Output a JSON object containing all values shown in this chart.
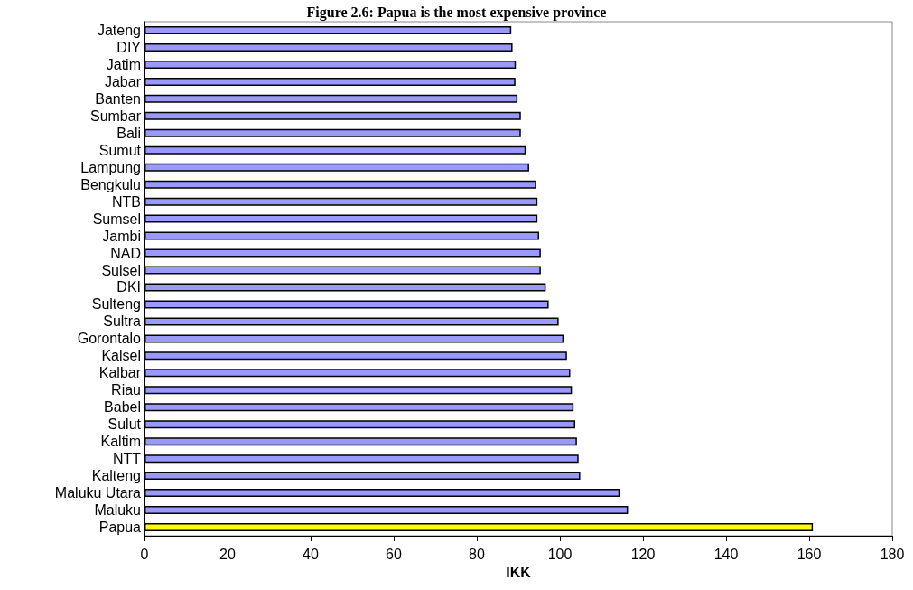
{
  "chart_data": {
    "type": "bar",
    "orientation": "horizontal",
    "title": "Figure 2.6: Papua is the most expensive province",
    "xlabel": "IKK",
    "categories": [
      "Jateng",
      "DIY",
      "Jatim",
      "Jabar",
      "Banten",
      "Sumbar",
      "Bali",
      "Sumut",
      "Lampung",
      "Bengkulu",
      "NTB",
      "Sumsel",
      "Jambi",
      "NAD",
      "Sulsel",
      "DKI",
      "Sulteng",
      "Sultra",
      "Gorontalo",
      "Kalsel",
      "Kalbar",
      "Riau",
      "Babel",
      "Sulut",
      "Kaltim",
      "NTT",
      "Kalteng",
      "Maluku Utara",
      "Maluku",
      "Papua"
    ],
    "values": [
      88.3,
      88.6,
      89.4,
      89.3,
      89.8,
      90.6,
      90.6,
      91.8,
      92.6,
      94.3,
      94.6,
      94.6,
      95.0,
      95.4,
      95.4,
      96.6,
      97.3,
      99.7,
      100.9,
      101.7,
      102.5,
      102.9,
      103.3,
      103.7,
      104.1,
      104.5,
      104.9,
      114.4,
      116.4,
      160.9
    ],
    "colors": [
      "#9999ff",
      "#9999ff",
      "#9999ff",
      "#9999ff",
      "#9999ff",
      "#9999ff",
      "#9999ff",
      "#9999ff",
      "#9999ff",
      "#9999ff",
      "#9999ff",
      "#9999ff",
      "#9999ff",
      "#9999ff",
      "#9999ff",
      "#9999ff",
      "#9999ff",
      "#9999ff",
      "#9999ff",
      "#9999ff",
      "#9999ff",
      "#9999ff",
      "#9999ff",
      "#9999ff",
      "#9999ff",
      "#9999ff",
      "#9999ff",
      "#9999ff",
      "#9999ff",
      "#ffff00"
    ],
    "xlim": [
      0,
      180
    ],
    "xticks": [
      0,
      20,
      40,
      60,
      80,
      100,
      120,
      140,
      160,
      180
    ],
    "grid": false
  }
}
